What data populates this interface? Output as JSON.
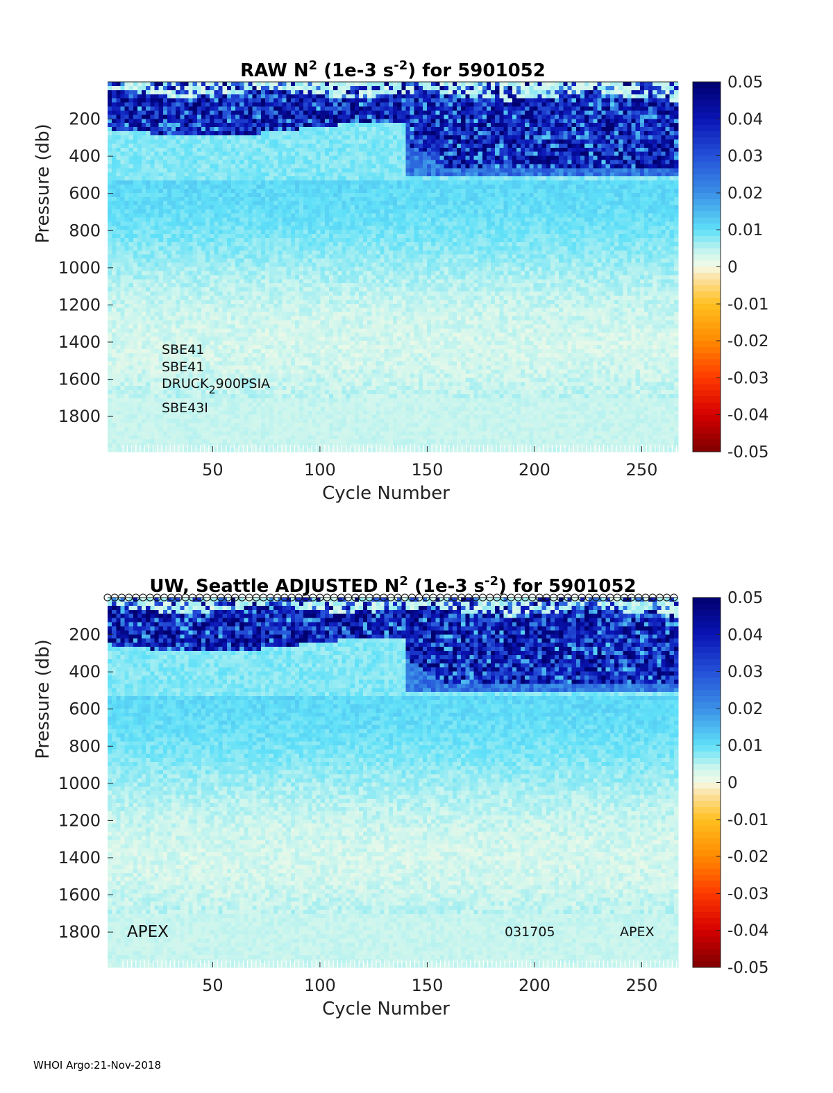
{
  "footer": "WHOI Argo:21-Nov-2018",
  "colormap": {
    "stops": [
      {
        "v": -0.05,
        "c": "#7f0000"
      },
      {
        "v": -0.04,
        "c": "#d40000"
      },
      {
        "v": -0.03,
        "c": "#ff3a00"
      },
      {
        "v": -0.02,
        "c": "#ff8a00"
      },
      {
        "v": -0.01,
        "c": "#ffc020"
      },
      {
        "v": -0.002,
        "c": "#fbe8b8"
      },
      {
        "v": 0.0,
        "c": "#f4fae6"
      },
      {
        "v": 0.004,
        "c": "#c9f5ee"
      },
      {
        "v": 0.01,
        "c": "#5fe0f8"
      },
      {
        "v": 0.02,
        "c": "#3a8fe6"
      },
      {
        "v": 0.03,
        "c": "#2450d8"
      },
      {
        "v": 0.04,
        "c": "#0a14b4"
      },
      {
        "v": 0.05,
        "c": "#00006e"
      }
    ]
  },
  "chart_data": [
    {
      "type": "heatmap",
      "id": "raw",
      "title_parts": [
        "RAW N",
        "2",
        " (1e-3 s",
        "-2",
        ") for 5901052"
      ],
      "xlabel": "Cycle Number",
      "ylabel": "Pressure (db)",
      "xlim": [
        1,
        267
      ],
      "ylim": [
        0,
        1990
      ],
      "xticks": [
        50,
        100,
        150,
        200,
        250
      ],
      "yticks": [
        200,
        400,
        600,
        800,
        1000,
        1200,
        1400,
        1600,
        1800
      ],
      "clim": [
        -0.05,
        0.05
      ],
      "cticks": [
        0.05,
        0.04,
        0.03,
        0.02,
        0.01,
        0,
        -0.01,
        -0.02,
        -0.03,
        -0.04,
        -0.05
      ],
      "show_cycle_markers": false,
      "annotations": [
        {
          "text": "SBE41"
        },
        {
          "text": "SBE41"
        },
        {
          "text": "DRUCK",
          "sub": "2",
          "rest": "900PSIA"
        },
        {
          "text": "SBE43I"
        }
      ]
    },
    {
      "type": "heatmap",
      "id": "adjusted",
      "title_parts": [
        "UW, Seattle  ADJUSTED N",
        "2",
        " (1e-3 s",
        "-2",
        ") for 5901052"
      ],
      "xlabel": "Cycle Number",
      "ylabel": "Pressure (db)",
      "xlim": [
        1,
        267
      ],
      "ylim": [
        0,
        1990
      ],
      "xticks": [
        50,
        100,
        150,
        200,
        250
      ],
      "yticks": [
        200,
        400,
        600,
        800,
        1000,
        1200,
        1400,
        1600,
        1800
      ],
      "clim": [
        -0.05,
        0.05
      ],
      "cticks": [
        0.05,
        0.04,
        0.03,
        0.02,
        0.01,
        0,
        -0.01,
        -0.02,
        -0.03,
        -0.04,
        -0.05
      ],
      "show_cycle_markers": true,
      "annotations": [
        {
          "text": "APEX"
        },
        {
          "text": "031705"
        },
        {
          "text": "APEX"
        }
      ]
    }
  ]
}
